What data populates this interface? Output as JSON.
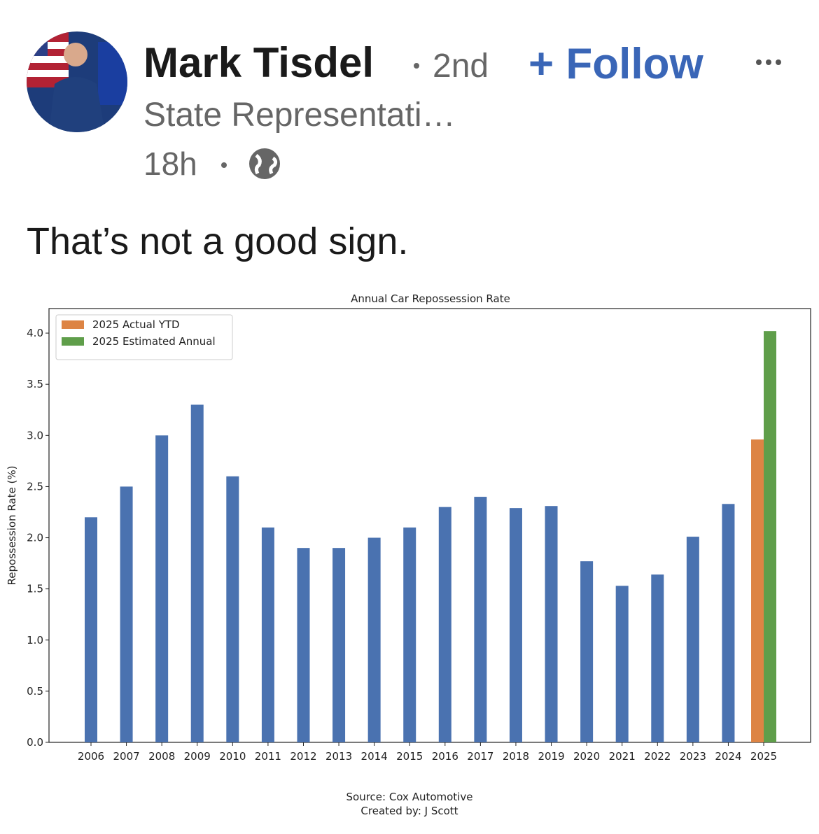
{
  "post": {
    "author": "Mark Tisdel",
    "degree": "2nd",
    "follow": "+ Follow",
    "headline": "State Representati…",
    "time": "18h",
    "text": "That’s not a good sign."
  },
  "chart_data": {
    "type": "bar",
    "title": "Annual Car Repossession Rate",
    "y_label": "Repossession Rate (%)",
    "categories": [
      "2006",
      "2007",
      "2008",
      "2009",
      "2010",
      "2011",
      "2012",
      "2013",
      "2014",
      "2015",
      "2016",
      "2017",
      "2018",
      "2019",
      "2020",
      "2021",
      "2022",
      "2023",
      "2024",
      "2025"
    ],
    "series": [
      {
        "color": "#4a72b0",
        "values": [
          2.2,
          2.5,
          3.0,
          3.3,
          2.6,
          2.1,
          1.9,
          1.9,
          2.0,
          2.1,
          2.3,
          2.4,
          2.29,
          2.31,
          1.77,
          1.53,
          1.64,
          2.01,
          2.33,
          null
        ]
      },
      {
        "name": "2025 Actual YTD",
        "color": "#dd8444",
        "values": [
          null,
          null,
          null,
          null,
          null,
          null,
          null,
          null,
          null,
          null,
          null,
          null,
          null,
          null,
          null,
          null,
          null,
          null,
          null,
          2.96
        ]
      },
      {
        "name": "2025 Estimated Annual",
        "color": "#5f9e4a",
        "values": [
          null,
          null,
          null,
          null,
          null,
          null,
          null,
          null,
          null,
          null,
          null,
          null,
          null,
          null,
          null,
          null,
          null,
          null,
          null,
          4.02
        ]
      }
    ],
    "ylim": [
      0,
      4.24
    ],
    "yticks": [
      {
        "value": 0,
        "label": "0.0"
      },
      0.5,
      {
        "value": 1,
        "label": "1.0"
      },
      1.5,
      {
        "value": 2,
        "label": "2.0"
      },
      2.5,
      {
        "value": 3,
        "label": "3.0"
      },
      3.5,
      {
        "value": 4,
        "label": "4.0"
      }
    ],
    "legend": "upper left",
    "notes": [
      "Source: Cox Automotive",
      "Created by: J Scott"
    ]
  }
}
